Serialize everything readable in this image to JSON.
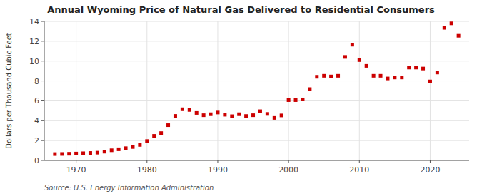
{
  "chart_data": {
    "type": "scatter",
    "title": "Annual Wyoming Price of Natural Gas Delivered to Residential Consumers",
    "ylabel": "Dollars per Thousand Cubic Feet",
    "source": "Source: U.S. Energy Information Administration",
    "color": "#cc0000",
    "marker": "square",
    "grid": true,
    "xlim": [
      1965.5,
      2025.5
    ],
    "ylim": [
      0,
      14
    ],
    "yticks": [
      0,
      2,
      4,
      6,
      8,
      10,
      12,
      14
    ],
    "xticks": [
      1970,
      1980,
      1990,
      2000,
      2010,
      2020
    ],
    "x": [
      1967,
      1968,
      1969,
      1970,
      1971,
      1972,
      1973,
      1974,
      1975,
      1976,
      1977,
      1978,
      1979,
      1980,
      1981,
      1982,
      1983,
      1984,
      1985,
      1986,
      1987,
      1988,
      1989,
      1990,
      1991,
      1992,
      1993,
      1994,
      1995,
      1996,
      1997,
      1998,
      1999,
      2000,
      2001,
      2002,
      2003,
      2004,
      2005,
      2006,
      2007,
      2008,
      2009,
      2010,
      2011,
      2012,
      2013,
      2014,
      2015,
      2016,
      2017,
      2018,
      2019,
      2020,
      2021,
      2022,
      2023,
      2024
    ],
    "values": [
      0.64,
      0.65,
      0.67,
      0.69,
      0.72,
      0.75,
      0.78,
      0.88,
      1.02,
      1.12,
      1.23,
      1.35,
      1.56,
      1.95,
      2.47,
      2.75,
      3.55,
      4.48,
      5.15,
      5.08,
      4.78,
      4.55,
      4.65,
      4.82,
      4.6,
      4.45,
      4.65,
      4.47,
      4.55,
      4.95,
      4.68,
      4.28,
      4.53,
      6.07,
      6.07,
      6.14,
      7.18,
      8.42,
      8.52,
      8.45,
      8.52,
      10.42,
      11.65,
      10.1,
      9.52,
      8.52,
      8.52,
      8.25,
      8.35,
      8.35,
      9.35,
      9.35,
      9.25,
      7.95,
      8.85,
      13.35,
      13.8,
      12.55
    ]
  }
}
